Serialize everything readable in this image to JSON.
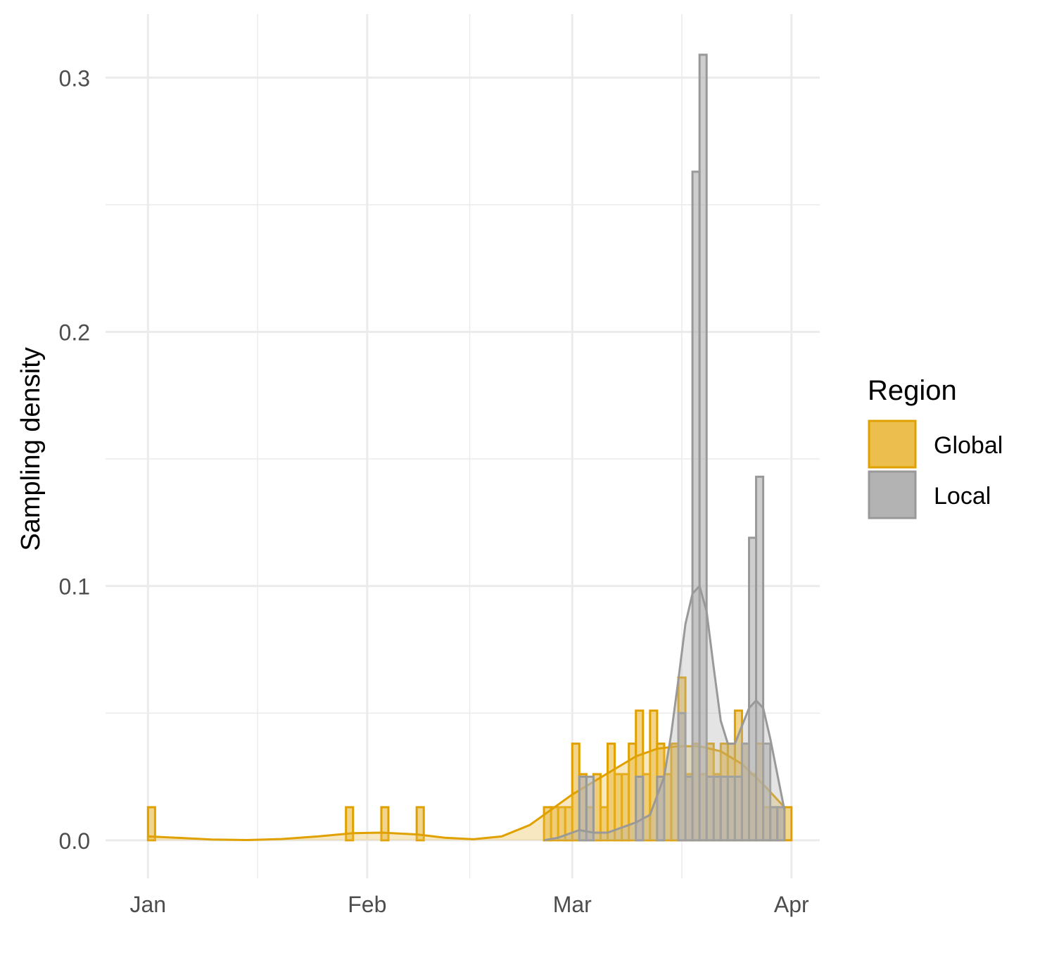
{
  "chart_data": {
    "type": "histogram",
    "ylabel": "Sampling density",
    "xlabel": "",
    "x_axis": {
      "type": "date",
      "ticks": [
        "Jan",
        "Feb",
        "Mar",
        "Apr"
      ],
      "tick_dates": [
        "2020-01-01",
        "2020-02-01",
        "2020-03-01",
        "2020-04-01"
      ],
      "range": [
        "2019-12-26",
        "2020-04-05"
      ]
    },
    "y_axis": {
      "ticks": [
        "0.0",
        "0.1",
        "0.2",
        "0.3"
      ],
      "tick_values": [
        0,
        0.1,
        0.2,
        0.3
      ],
      "range": [
        -0.015,
        0.325
      ]
    },
    "bin_width_days": 1,
    "grid": true,
    "legend": {
      "title": "Region",
      "placement": "right",
      "items": [
        {
          "name": "Global",
          "fill": "#EBBE4E",
          "stroke": "#E0A100"
        },
        {
          "name": "Local",
          "fill": "#B3B3B3",
          "stroke": "#999999"
        }
      ]
    },
    "series": [
      {
        "name": "Global",
        "color": "#E0A100",
        "fill": "#EBBE4E",
        "bins": [
          {
            "x": "2020-01-01",
            "y": 0.013
          },
          {
            "x": "2020-01-29",
            "y": 0.013
          },
          {
            "x": "2020-02-03",
            "y": 0.013
          },
          {
            "x": "2020-02-08",
            "y": 0.013
          },
          {
            "x": "2020-02-26",
            "y": 0.013
          },
          {
            "x": "2020-02-27",
            "y": 0.013
          },
          {
            "x": "2020-02-28",
            "y": 0.013
          },
          {
            "x": "2020-02-29",
            "y": 0.013
          },
          {
            "x": "2020-03-01",
            "y": 0.038
          },
          {
            "x": "2020-03-02",
            "y": 0.026
          },
          {
            "x": "2020-03-03",
            "y": 0.013
          },
          {
            "x": "2020-03-04",
            "y": 0.026
          },
          {
            "x": "2020-03-05",
            "y": 0.013
          },
          {
            "x": "2020-03-06",
            "y": 0.038
          },
          {
            "x": "2020-03-07",
            "y": 0.026
          },
          {
            "x": "2020-03-08",
            "y": 0.026
          },
          {
            "x": "2020-03-09",
            "y": 0.038
          },
          {
            "x": "2020-03-10",
            "y": 0.051
          },
          {
            "x": "2020-03-11",
            "y": 0.026
          },
          {
            "x": "2020-03-12",
            "y": 0.051
          },
          {
            "x": "2020-03-13",
            "y": 0.038
          },
          {
            "x": "2020-03-14",
            "y": 0.026
          },
          {
            "x": "2020-03-15",
            "y": 0.038
          },
          {
            "x": "2020-03-16",
            "y": 0.064
          },
          {
            "x": "2020-03-17",
            "y": 0.026
          },
          {
            "x": "2020-03-18",
            "y": 0.038
          },
          {
            "x": "2020-03-19",
            "y": 0.026
          },
          {
            "x": "2020-03-20",
            "y": 0.038
          },
          {
            "x": "2020-03-21",
            "y": 0.026
          },
          {
            "x": "2020-03-22",
            "y": 0.038
          },
          {
            "x": "2020-03-23",
            "y": 0.038
          },
          {
            "x": "2020-03-24",
            "y": 0.051
          },
          {
            "x": "2020-03-25",
            "y": 0.038
          },
          {
            "x": "2020-03-26",
            "y": 0.026
          },
          {
            "x": "2020-03-27",
            "y": 0.038
          },
          {
            "x": "2020-03-28",
            "y": 0.013
          },
          {
            "x": "2020-03-29",
            "y": 0.013
          },
          {
            "x": "2020-03-30",
            "y": 0.013
          },
          {
            "x": "2020-03-31",
            "y": 0.013
          }
        ],
        "density": [
          [
            "2020-01-01",
            0.0015
          ],
          [
            "2020-01-05",
            0.001
          ],
          [
            "2020-01-10",
            0.0003
          ],
          [
            "2020-01-15",
            0.0001
          ],
          [
            "2020-01-20",
            0.0005
          ],
          [
            "2020-01-25",
            0.0015
          ],
          [
            "2020-01-30",
            0.0028
          ],
          [
            "2020-02-03",
            0.003
          ],
          [
            "2020-02-08",
            0.0023
          ],
          [
            "2020-02-12",
            0.001
          ],
          [
            "2020-02-16",
            0.0004
          ],
          [
            "2020-02-20",
            0.0015
          ],
          [
            "2020-02-24",
            0.006
          ],
          [
            "2020-02-27",
            0.012
          ],
          [
            "2020-03-01",
            0.018
          ],
          [
            "2020-03-04",
            0.023
          ],
          [
            "2020-03-07",
            0.028
          ],
          [
            "2020-03-10",
            0.033
          ],
          [
            "2020-03-13",
            0.036
          ],
          [
            "2020-03-16",
            0.037
          ],
          [
            "2020-03-19",
            0.037
          ],
          [
            "2020-03-22",
            0.035
          ],
          [
            "2020-03-25",
            0.03
          ],
          [
            "2020-03-28",
            0.022
          ],
          [
            "2020-03-31",
            0.013
          ]
        ]
      },
      {
        "name": "Local",
        "color": "#999999",
        "fill": "#B3B3B3",
        "bins": [
          {
            "x": "2020-03-02",
            "y": 0.025
          },
          {
            "x": "2020-03-03",
            "y": 0.025
          },
          {
            "x": "2020-03-10",
            "y": 0.025
          },
          {
            "x": "2020-03-13",
            "y": 0.025
          },
          {
            "x": "2020-03-16",
            "y": 0.05
          },
          {
            "x": "2020-03-17",
            "y": 0.025
          },
          {
            "x": "2020-03-18",
            "y": 0.263
          },
          {
            "x": "2020-03-19",
            "y": 0.309
          },
          {
            "x": "2020-03-20",
            "y": 0.025
          },
          {
            "x": "2020-03-21",
            "y": 0.025
          },
          {
            "x": "2020-03-22",
            "y": 0.025
          },
          {
            "x": "2020-03-23",
            "y": 0.025
          },
          {
            "x": "2020-03-24",
            "y": 0.025
          },
          {
            "x": "2020-03-25",
            "y": 0.038
          },
          {
            "x": "2020-03-26",
            "y": 0.119
          },
          {
            "x": "2020-03-27",
            "y": 0.143
          },
          {
            "x": "2020-03-28",
            "y": 0.038
          },
          {
            "x": "2020-03-29",
            "y": 0.013
          },
          {
            "x": "2020-03-30",
            "y": 0.013
          }
        ],
        "density": [
          [
            "2020-02-26",
            0.0
          ],
          [
            "2020-02-28",
            0.001
          ],
          [
            "2020-03-01",
            0.003
          ],
          [
            "2020-03-02",
            0.004
          ],
          [
            "2020-03-04",
            0.003
          ],
          [
            "2020-03-06",
            0.003
          ],
          [
            "2020-03-08",
            0.005
          ],
          [
            "2020-03-10",
            0.007
          ],
          [
            "2020-03-12",
            0.01
          ],
          [
            "2020-03-14",
            0.025
          ],
          [
            "2020-03-15",
            0.042
          ],
          [
            "2020-03-16",
            0.063
          ],
          [
            "2020-03-17",
            0.085
          ],
          [
            "2020-03-18",
            0.097
          ],
          [
            "2020-03-19",
            0.1
          ],
          [
            "2020-03-20",
            0.09
          ],
          [
            "2020-03-21",
            0.068
          ],
          [
            "2020-03-22",
            0.047
          ],
          [
            "2020-03-23",
            0.038
          ],
          [
            "2020-03-24",
            0.038
          ],
          [
            "2020-03-25",
            0.045
          ],
          [
            "2020-03-26",
            0.052
          ],
          [
            "2020-03-27",
            0.055
          ],
          [
            "2020-03-28",
            0.052
          ],
          [
            "2020-03-29",
            0.04
          ],
          [
            "2020-03-30",
            0.026
          ],
          [
            "2020-03-31",
            0.012
          ]
        ]
      }
    ]
  }
}
